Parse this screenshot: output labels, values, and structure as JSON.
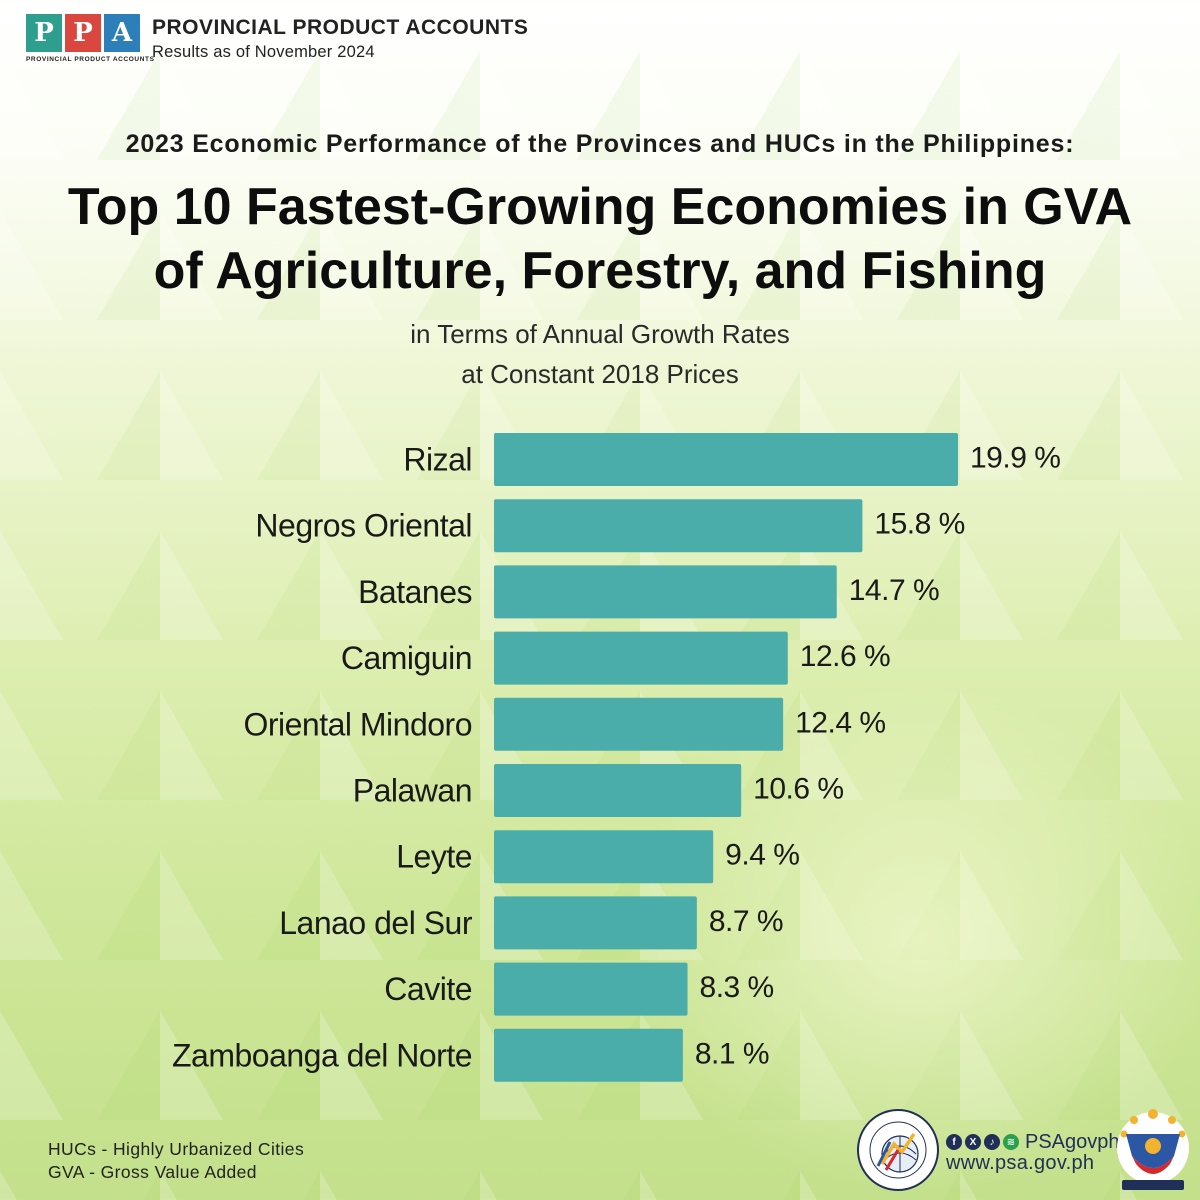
{
  "header": {
    "logo_letters": [
      "P",
      "P",
      "P",
      "A"
    ],
    "logo_caption": "PROVINCIAL  PRODUCT  ACCOUNTS",
    "title": "PROVINCIAL PRODUCT ACCOUNTS",
    "subtitle": "Results as of November 2024"
  },
  "supertitle": "2023 Economic Performance of the Provinces and HUCs in the Philippines:",
  "title_line1": "Top 10 Fastest-Growing Economies in GVA",
  "title_line2": "of Agriculture, Forestry, and Fishing",
  "subtitle_line1": "in Terms of Annual Growth Rates",
  "subtitle_line2": "at Constant 2018 Prices",
  "chart_data": {
    "type": "bar",
    "orientation": "horizontal",
    "title": "Top 10 Fastest-Growing Economies in GVA of Agriculture, Forestry, and Fishing",
    "categories": [
      "Rizal",
      "Negros Oriental",
      "Batanes",
      "Camiguin",
      "Oriental Mindoro",
      "Palawan",
      "Leyte",
      "Lanao del Sur",
      "Cavite",
      "Zamboanga del Norte"
    ],
    "values": [
      19.9,
      15.8,
      14.7,
      12.6,
      12.4,
      10.6,
      9.4,
      8.7,
      8.3,
      8.1
    ],
    "value_labels": [
      "19.9 %",
      "15.8 %",
      "14.7 %",
      "12.6 %",
      "12.4 %",
      "10.6 %",
      "9.4 %",
      "8.7 %",
      "8.3 %",
      "8.1 %"
    ],
    "unit": "%",
    "xlim": [
      0,
      19.9
    ],
    "grid": false,
    "bar_color": "#4aada9"
  },
  "footnotes": {
    "line1": "HUCs - Highly Urbanized Cities",
    "line2": "GVA - Gross Value Added"
  },
  "footer": {
    "social_icons": [
      "facebook-icon",
      "x-icon",
      "tiktok-icon",
      "spotify-icon"
    ],
    "handle": "PSAgovph",
    "website": "www.psa.gov.ph",
    "seal_text": "PHILIPPINE STATISTICS AUTHORITY",
    "seal_motto": "Solid · Responsive · World-class",
    "bagong_text": "BAGONG PILIPINAS"
  },
  "colors": {
    "bar": "#4aada9",
    "text": "#1a1a1a",
    "psa_navy": "#1f2f57"
  }
}
